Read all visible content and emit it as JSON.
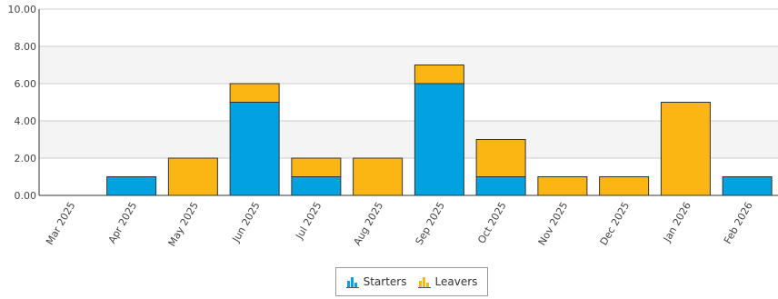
{
  "chart_data": {
    "type": "bar",
    "stacked": true,
    "categories": [
      "Mar 2025",
      "Apr 2025",
      "May 2025",
      "Jun 2025",
      "Jul 2025",
      "Aug 2025",
      "Sep 2025",
      "Oct 2025",
      "Nov 2025",
      "Dec 2025",
      "Jan 2026",
      "Feb 2026"
    ],
    "series": [
      {
        "name": "Starters",
        "color": "#00a2e0",
        "values": [
          0,
          1,
          0,
          5,
          1,
          0,
          6,
          1,
          0,
          0,
          0,
          1
        ]
      },
      {
        "name": "Leavers",
        "color": "#fbb614",
        "values": [
          0,
          0,
          2,
          1,
          1,
          2,
          1,
          2,
          1,
          1,
          5,
          0
        ]
      }
    ],
    "ylim": [
      0,
      10
    ],
    "yticks": [
      "0.00",
      "2.00",
      "4.00",
      "6.00",
      "8.00",
      "10.00"
    ],
    "grid": true,
    "legend_position": "bottom-center",
    "legend_icon": "bar-chart-icon"
  }
}
